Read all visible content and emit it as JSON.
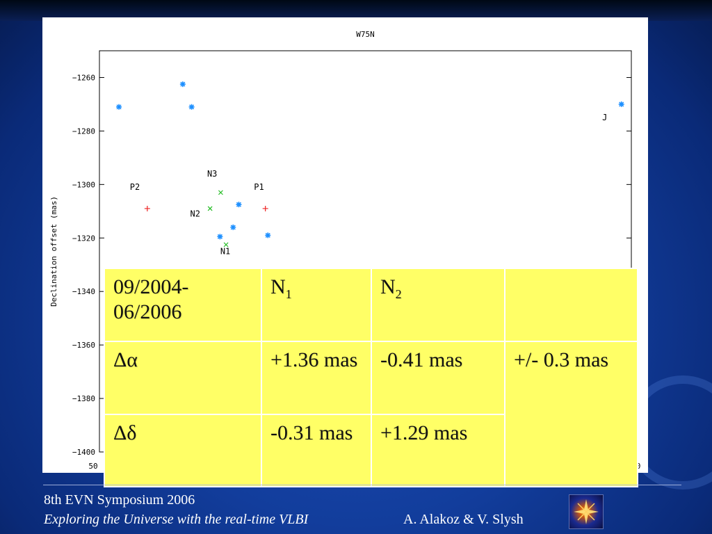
{
  "slide": {
    "footer_event": "8th EVN Symposium 2006",
    "footer_tagline": "Exploring the Universe with the real-time VLBI",
    "footer_authors": "A. Alakoz & V. Slysh",
    "logo_icon": "galaxy-star-logo-icon"
  },
  "chart_data": {
    "type": "scatter",
    "title": "W75N",
    "xlabel": "",
    "ylabel": "Declination offset (mas)",
    "ylim": [
      -1400,
      -1250
    ],
    "xlim": [
      500,
      2000
    ],
    "yticks": [
      -1260,
      -1280,
      -1300,
      -1320,
      -1340,
      -1360,
      -1380,
      -1400
    ],
    "xtick_labels_visible": [
      "50",
      "0"
    ],
    "grid": false,
    "series": [
      {
        "marker": "asterisk",
        "color": "#1e90ff",
        "points": [
          {
            "x": 555,
            "y": -1271
          },
          {
            "x": 735,
            "y": -1262.5
          },
          {
            "x": 760,
            "y": -1271
          },
          {
            "x": 840,
            "y": -1319.5
          },
          {
            "x": 877,
            "y": -1316
          },
          {
            "x": 893,
            "y": -1307.5
          },
          {
            "x": 975,
            "y": -1319
          },
          {
            "x": 1972,
            "y": -1270
          }
        ]
      },
      {
        "marker": "cross",
        "color": "#22bb22",
        "points": [
          {
            "x": 812,
            "y": -1309
          },
          {
            "x": 842,
            "y": -1303
          },
          {
            "x": 857,
            "y": -1322.5
          }
        ]
      },
      {
        "marker": "plus",
        "color": "#ee2222",
        "points": [
          {
            "x": 635,
            "y": -1309
          },
          {
            "x": 968,
            "y": -1309
          }
        ]
      }
    ],
    "annotations": [
      {
        "text": "P2",
        "x": 600,
        "y": -1302
      },
      {
        "text": "N3",
        "x": 818,
        "y": -1297
      },
      {
        "text": "P1",
        "x": 950,
        "y": -1302
      },
      {
        "text": "N2",
        "x": 770,
        "y": -1312
      },
      {
        "text": "N1",
        "x": 855,
        "y": -1326
      },
      {
        "text": "J",
        "x": 1925,
        "y": -1276
      }
    ]
  },
  "table": {
    "rows": [
      {
        "c1": "09/2004-06/2006",
        "c2_base": "N",
        "c2_sub": "1",
        "c3_base": "N",
        "c3_sub": "2",
        "c4": ""
      },
      {
        "c1": "Δα",
        "c2": "+1.36 mas",
        "c3": "-0.41 mas",
        "c4": "+/- 0.3 mas"
      },
      {
        "c1": "Δδ",
        "c2": "-0.31 mas",
        "c3": "+1.29 mas"
      }
    ]
  }
}
